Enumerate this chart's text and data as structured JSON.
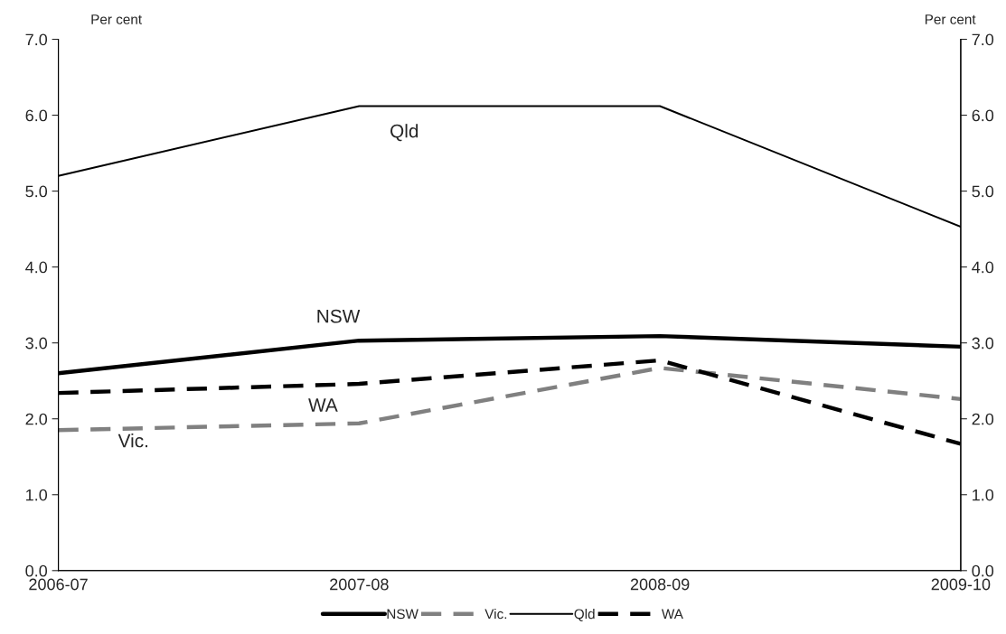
{
  "chart_data": {
    "type": "line",
    "ylabel": "Per cent",
    "y2label": "Per cent",
    "categories": [
      "2006-07",
      "2007-08",
      "2008-09",
      "2009-10"
    ],
    "series": [
      {
        "name": "NSW",
        "color": "#000000",
        "line_style": "solid",
        "values": [
          2.6,
          3.03,
          3.09,
          2.95
        ]
      },
      {
        "name": "Vic.",
        "color": "#808080",
        "line_style": "dashed",
        "values": [
          1.85,
          1.94,
          2.67,
          2.26
        ]
      },
      {
        "name": "Qld",
        "color": "#000000",
        "line_style": "solid",
        "values": [
          5.2,
          6.12,
          6.12,
          4.53
        ]
      },
      {
        "name": "WA",
        "color": "#000000",
        "line_style": "dashed",
        "values": [
          2.34,
          2.46,
          2.77,
          1.67
        ]
      }
    ],
    "ylim": [
      0,
      7
    ],
    "yticks": [
      {
        "value": 0,
        "label": "0.0"
      },
      {
        "value": 1,
        "label": "1.0"
      },
      {
        "value": 2,
        "label": "2.0"
      },
      {
        "value": 3,
        "label": "3.0"
      },
      {
        "value": 4,
        "label": "4.0"
      },
      {
        "value": 5,
        "label": "5.0"
      },
      {
        "value": 6,
        "label": "6.0"
      },
      {
        "value": 7,
        "label": "7.0"
      }
    ],
    "y2lim": [
      0,
      7
    ],
    "y2ticks": [
      {
        "value": 0,
        "label": "0.0"
      },
      {
        "value": 1,
        "label": "1.0"
      },
      {
        "value": 2,
        "label": "2.0"
      },
      {
        "value": 3,
        "label": "3.0"
      },
      {
        "value": 4,
        "label": "4.0"
      },
      {
        "value": 5,
        "label": "5.0"
      },
      {
        "value": 6,
        "label": "6.0"
      },
      {
        "value": 7,
        "label": "7.0"
      }
    ],
    "grid": false,
    "legend": "bottom",
    "marker": "none"
  }
}
